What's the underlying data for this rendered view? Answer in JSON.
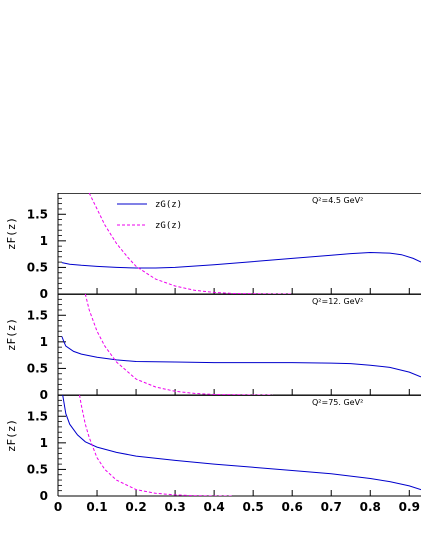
{
  "chart_data": {
    "type": "line",
    "xlim": [
      0,
      0.93
    ],
    "ylim": [
      0,
      1.9
    ],
    "x_ticks": [
      0,
      0.1,
      0.2,
      0.3,
      0.4,
      0.5,
      0.6,
      0.7,
      0.8,
      0.9
    ],
    "x_tick_labels": [
      "0",
      "0.1",
      "0.2",
      "0.3",
      "0.4",
      "0.5",
      "0.6",
      "0.7",
      "0.8",
      "0.9"
    ],
    "y_ticks": [
      0,
      0.5,
      1,
      1.5
    ],
    "y_tick_labels": [
      "0",
      "0.5",
      "1",
      "1.5"
    ],
    "ylabel": "zF(z)",
    "legend": [
      {
        "label": "zG(z)",
        "color": "#0000cc",
        "dash": "solid"
      },
      {
        "label": "zG(z)",
        "color": "#ee00ee",
        "dash": "dashed"
      }
    ],
    "panels": [
      {
        "annotation": "Q²=4.5 GeV²",
        "series": [
          {
            "color": "#0000cc",
            "dash": "solid",
            "x": [
              0.01,
              0.03,
              0.06,
              0.1,
              0.15,
              0.2,
              0.25,
              0.3,
              0.4,
              0.5,
              0.6,
              0.7,
              0.75,
              0.8,
              0.85,
              0.88,
              0.91,
              0.93
            ],
            "y": [
              0.59,
              0.56,
              0.54,
              0.52,
              0.5,
              0.49,
              0.49,
              0.5,
              0.55,
              0.61,
              0.67,
              0.73,
              0.76,
              0.78,
              0.77,
              0.74,
              0.67,
              0.6
            ]
          },
          {
            "color": "#ee00ee",
            "dash": "dashed",
            "x": [
              0.08,
              0.09,
              0.1,
              0.12,
              0.15,
              0.18,
              0.2,
              0.25,
              0.3,
              0.35,
              0.4,
              0.45,
              0.5,
              0.55,
              0.6
            ],
            "y": [
              1.9,
              1.75,
              1.6,
              1.3,
              0.95,
              0.68,
              0.52,
              0.28,
              0.15,
              0.07,
              0.03,
              0.01,
              0.005,
              0.0,
              0.0
            ]
          }
        ]
      },
      {
        "annotation": "Q²=12. GeV²",
        "series": [
          {
            "color": "#0000cc",
            "dash": "solid",
            "x": [
              0.01,
              0.015,
              0.02,
              0.04,
              0.06,
              0.1,
              0.15,
              0.2,
              0.3,
              0.4,
              0.5,
              0.6,
              0.7,
              0.75,
              0.8,
              0.85,
              0.9,
              0.93
            ],
            "y": [
              1.1,
              1.0,
              0.92,
              0.82,
              0.77,
              0.71,
              0.66,
              0.63,
              0.62,
              0.61,
              0.61,
              0.61,
              0.6,
              0.59,
              0.56,
              0.52,
              0.43,
              0.34
            ]
          },
          {
            "color": "#ee00ee",
            "dash": "dashed",
            "x": [
              0.07,
              0.08,
              0.1,
              0.12,
              0.15,
              0.2,
              0.25,
              0.3,
              0.35,
              0.4,
              0.45,
              0.5,
              0.55
            ],
            "y": [
              1.9,
              1.6,
              1.2,
              0.92,
              0.62,
              0.3,
              0.15,
              0.07,
              0.03,
              0.01,
              0.005,
              0.0,
              0.0
            ]
          }
        ]
      },
      {
        "annotation": "Q²=75. GeV²",
        "series": [
          {
            "color": "#0000cc",
            "dash": "solid",
            "x": [
              0.012,
              0.02,
              0.03,
              0.05,
              0.07,
              0.1,
              0.15,
              0.2,
              0.3,
              0.4,
              0.5,
              0.6,
              0.7,
              0.8,
              0.85,
              0.9,
              0.93
            ],
            "y": [
              1.9,
              1.55,
              1.35,
              1.15,
              1.02,
              0.92,
              0.82,
              0.75,
              0.67,
              0.6,
              0.54,
              0.48,
              0.42,
              0.33,
              0.27,
              0.19,
              0.12
            ]
          },
          {
            "color": "#ee00ee",
            "dash": "dashed",
            "x": [
              0.055,
              0.06,
              0.07,
              0.08,
              0.1,
              0.12,
              0.15,
              0.2,
              0.25,
              0.3,
              0.35,
              0.4,
              0.45
            ],
            "y": [
              1.9,
              1.7,
              1.35,
              1.1,
              0.72,
              0.5,
              0.3,
              0.12,
              0.05,
              0.02,
              0.005,
              0.0,
              0.0
            ]
          }
        ]
      }
    ]
  }
}
